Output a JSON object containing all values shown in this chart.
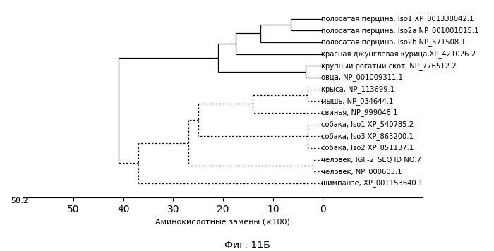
{
  "title": "Фиг. 11Б",
  "xlabel": "Аминокислотные замены (×100)",
  "scale_label": "58.2",
  "xticks": [
    0,
    10,
    20,
    30,
    40,
    50
  ],
  "xmax": 58.2,
  "taxa": [
    "полосатая перцина, Iso1 XP_001338042.1",
    "полосатая перцина, Iso2a NP_001001815.1",
    "полосатая перцина, Iso2b NP_571508.1",
    "красная джунглевая курица,XP_421026.2",
    "крупный рогатый скот, NP_776512.2",
    "овца, NP_001009311.1",
    "крыса, NP_113699.1",
    "мышь, NP_034644.1",
    "свинья, NP_999048.1",
    "собака, Iso1 XP_540785.2",
    "собака, Iso3 XP_863200.1",
    "собака, Iso2 XP_851137.1",
    "человек, IGF-2_SEQ ID NO:7",
    "человек, NP_000603.1",
    "шимпанзе, XP_001153640.1"
  ],
  "n_taxa": 15,
  "line_color": "#000000",
  "font_size": 7.2,
  "label_fontsize": 7.2,
  "axis_fontsize": 8.0,
  "title_fontsize": 10.0,
  "nodes": {
    "n01": 6.5,
    "n012": 12.5,
    "n0123": 17.5,
    "n45": 3.5,
    "n012345": 21.0,
    "n67": 3.0,
    "n678": 14.0,
    "n_dogs": 3.0,
    "n678_dogs": 25.0,
    "n_human": 2.0,
    "n_lower": 27.0,
    "n_chimp": 37.0,
    "n_root": 41.0
  }
}
